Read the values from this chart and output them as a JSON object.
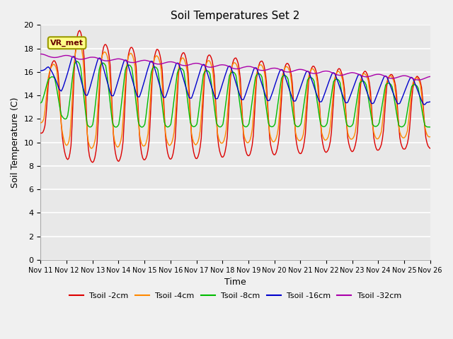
{
  "title": "Soil Temperatures Set 2",
  "xlabel": "Time",
  "ylabel": "Soil Temperature (C)",
  "ylim": [
    0,
    20
  ],
  "yticks": [
    0,
    2,
    4,
    6,
    8,
    10,
    12,
    14,
    16,
    18,
    20
  ],
  "xtick_labels": [
    "Nov 11",
    "Nov 12",
    "Nov 13",
    "Nov 14",
    "Nov 15",
    "Nov 16",
    "Nov 17",
    "Nov 18",
    "Nov 19",
    "Nov 20",
    "Nov 21",
    "Nov 22",
    "Nov 23",
    "Nov 24",
    "Nov 25",
    "Nov 26"
  ],
  "bg_color": "#e8e8e8",
  "fig_color": "#f0f0f0",
  "grid_color": "#ffffff",
  "vr_label": "VR_met",
  "vr_facecolor": "#ffff88",
  "vr_edgecolor": "#999900",
  "vr_textcolor": "#660000",
  "series_colors": [
    "#dd0000",
    "#ff8800",
    "#00bb00",
    "#0000cc",
    "#aa00aa"
  ],
  "series_labels": [
    "Tsoil -2cm",
    "Tsoil -4cm",
    "Tsoil -8cm",
    "Tsoil -16cm",
    "Tsoil -32cm"
  ],
  "linewidth": 1.0
}
